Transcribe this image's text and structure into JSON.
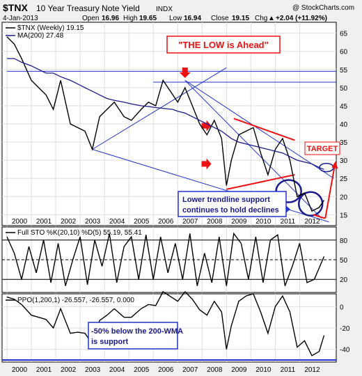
{
  "header": {
    "symbol": "$TNX",
    "title": "10 Year Treasury Note Yield",
    "exchange": "INDX",
    "watermark": "@ StockCharts.com",
    "date": "4-Jan-2013",
    "open_label": "Open",
    "open": "16.96",
    "high_label": "High",
    "high": "19.65",
    "low_label": "Low",
    "low": "16.94",
    "close_label": "Close",
    "close": "19.15",
    "chg_label": "Chg",
    "chg": "+2.04 (+11.92%)",
    "chg_arrow": "▲"
  },
  "chart_data": [
    {
      "type": "line",
      "panel": "price",
      "legend": [
        {
          "text": "$TNX (Weekly) 19.15",
          "color": "#000000"
        },
        {
          "text": "MA(200) 27.48",
          "color": "#1a1a8c"
        }
      ],
      "x": [
        2000,
        2000.3,
        2000.6,
        2001.0,
        2001.3,
        2001.6,
        2001.9,
        2002.2,
        2002.6,
        2002.9,
        2003.2,
        2003.5,
        2003.8,
        2004.1,
        2004.4,
        2004.8,
        2005.1,
        2005.5,
        2005.8,
        2006.1,
        2006.4,
        2006.8,
        2007.0,
        2007.3,
        2007.6,
        2007.9,
        2008.2,
        2008.5,
        2008.8,
        2009.0,
        2009.2,
        2009.5,
        2009.8,
        2010.1,
        2010.4,
        2010.7,
        2011.0,
        2011.3,
        2011.6,
        2011.9,
        2012.2,
        2012.5,
        2012.8,
        2013.0
      ],
      "series": [
        {
          "name": "$TNX",
          "values": [
            64,
            62,
            58,
            52,
            50,
            48,
            44,
            52,
            40,
            39,
            38,
            33,
            42,
            44,
            46,
            42,
            41,
            44,
            46,
            45,
            52,
            48,
            46,
            50,
            45,
            40,
            37,
            41,
            36,
            23,
            30,
            37,
            38,
            39,
            32,
            26,
            33,
            36,
            30,
            20,
            21,
            16,
            17,
            19
          ]
        },
        {
          "name": "MA(200)",
          "values": [
            58,
            58,
            57,
            56,
            55,
            54,
            54,
            53,
            52,
            51,
            50,
            49,
            48,
            47,
            46.5,
            46,
            45.5,
            45,
            44.8,
            44.5,
            44.3,
            44,
            43.5,
            43,
            42,
            41,
            40,
            39,
            38,
            37,
            36,
            35,
            34.5,
            34,
            33.5,
            33,
            32.5,
            32,
            31,
            30,
            29.5,
            29,
            28,
            27.48
          ]
        }
      ],
      "ylim": [
        12,
        68
      ],
      "yticks": [
        15,
        20,
        25,
        30,
        35,
        40,
        45,
        50,
        55,
        60,
        65
      ],
      "xlim": [
        1999.8,
        2013.5
      ]
    },
    {
      "type": "line",
      "panel": "stochastic",
      "legend": [
        {
          "text": "Full STO %K(20,10) %D(5) 55.19, 55.41",
          "color": "#000000"
        }
      ],
      "yticks": [
        20,
        50,
        80
      ],
      "ylim": [
        0,
        100
      ],
      "levels": [
        20,
        50,
        80
      ],
      "x": [
        2000,
        2000.3,
        2000.6,
        2000.9,
        2001.2,
        2001.5,
        2001.8,
        2002.1,
        2002.4,
        2002.7,
        2003.0,
        2003.3,
        2003.6,
        2003.9,
        2004.2,
        2004.5,
        2004.8,
        2005.1,
        2005.4,
        2005.7,
        2006.0,
        2006.3,
        2006.6,
        2006.9,
        2007.2,
        2007.5,
        2007.8,
        2008.1,
        2008.4,
        2008.7,
        2009.0,
        2009.3,
        2009.6,
        2009.9,
        2010.2,
        2010.5,
        2010.8,
        2011.1,
        2011.4,
        2011.7,
        2012.0,
        2012.3,
        2012.6,
        2013.0
      ],
      "series": [
        {
          "name": "%K",
          "values": [
            85,
            60,
            20,
            70,
            30,
            80,
            15,
            75,
            10,
            50,
            85,
            12,
            80,
            40,
            90,
            15,
            70,
            85,
            20,
            88,
            20,
            85,
            30,
            75,
            20,
            90,
            10,
            60,
            15,
            85,
            10,
            90,
            75,
            20,
            85,
            15,
            80,
            88,
            10,
            40,
            75,
            15,
            20,
            55
          ]
        }
      ]
    },
    {
      "type": "line",
      "panel": "ppo",
      "legend": [
        {
          "text": "PPO(1,200,1) -26.557, -26.557, 0.000",
          "color": "#000000"
        }
      ],
      "yticks": [
        -40,
        -20,
        0
      ],
      "ylim": [
        -52,
        12
      ],
      "support_level": -50,
      "x": [
        2000,
        2000.3,
        2000.6,
        2001.0,
        2001.3,
        2001.6,
        2001.9,
        2002.2,
        2002.6,
        2002.9,
        2003.2,
        2003.5,
        2003.8,
        2004.1,
        2004.4,
        2004.8,
        2005.1,
        2005.5,
        2005.8,
        2006.1,
        2006.4,
        2006.8,
        2007.0,
        2007.3,
        2007.6,
        2007.9,
        2008.2,
        2008.5,
        2008.8,
        2009.0,
        2009.2,
        2009.5,
        2009.8,
        2010.1,
        2010.4,
        2010.7,
        2011.0,
        2011.3,
        2011.6,
        2011.9,
        2012.2,
        2012.5,
        2012.8,
        2013.0
      ],
      "series": [
        {
          "name": "PPO",
          "values": [
            9,
            7,
            2,
            -8,
            -10,
            -12,
            -20,
            -2,
            -25,
            -24,
            -25,
            -35,
            -13,
            -8,
            -2,
            -10,
            -10,
            -2,
            2,
            1,
            14,
            8,
            5,
            14,
            7,
            -3,
            -8,
            5,
            -5,
            -40,
            -18,
            5,
            10,
            12,
            -5,
            -25,
            0,
            10,
            -5,
            -38,
            -32,
            -46,
            -42,
            -27
          ]
        }
      ]
    }
  ],
  "x_axis": {
    "years": [
      "2000",
      "2001",
      "2002",
      "2003",
      "2004",
      "2005",
      "2006",
      "2007",
      "2008",
      "2009",
      "2010",
      "2011",
      "2012"
    ]
  },
  "annotations": {
    "low_ahead": "\"THE LOW is Ahead\"",
    "target": "TARGET",
    "lower_trend_line1": "Lower trendline support",
    "lower_trend_line2": "continues to hold declines",
    "wma_line1": "-50% below the 200-WMA",
    "wma_line2": "is support"
  },
  "colors": {
    "trendline": "#2233cc",
    "red": "#ee1111",
    "ma": "#1a1a8c",
    "annotation_border": "#2233cc"
  }
}
